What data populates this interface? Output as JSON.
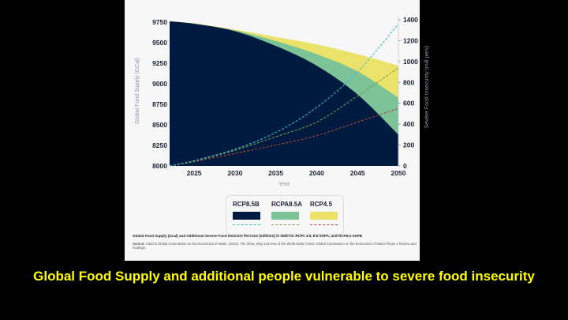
{
  "chart_data": {
    "type": "area",
    "title": "Global Food Supply (Gcal) and Additional Severe Food Insecure Persons (millions) in 2050 for RCPs 4.5, 8.5-SSPA, and RCP8.5-SSPB",
    "source_label": "Source:",
    "source": "Cited in Global Commission on the Economics of Water. (2023). The What, Why and How of the World Water Crisis: Global Commission on the Economics of Water Phase 1 Review and Findings.",
    "xlabel": "Year",
    "ylabel": "Global Food Supply (GCal)",
    "y2label": "Severe Food Insecurity (mill pers)",
    "xlim": [
      2022,
      2050
    ],
    "ylim": [
      8000,
      9800
    ],
    "y2lim": [
      0,
      1450
    ],
    "xticks": [
      2025,
      2030,
      2035,
      2040,
      2045,
      2050
    ],
    "yticks": [
      8000,
      8250,
      8500,
      8750,
      9000,
      9250,
      9500,
      9750
    ],
    "y2ticks": [
      0,
      200,
      400,
      600,
      800,
      1000,
      1200,
      1400
    ],
    "x": [
      2022,
      2025,
      2030,
      2035,
      2040,
      2045,
      2050
    ],
    "series": [
      {
        "name": "RCP4.5",
        "color": "#ebe26a",
        "line_color": "#a8463a",
        "supply": [
          9760,
          9735,
          9660,
          9570,
          9480,
          9360,
          9220
        ],
        "insecure": [
          0,
          40,
          120,
          200,
          290,
          420,
          550
        ]
      },
      {
        "name": "RCPA8.5A",
        "color": "#7cc497",
        "line_color": "#7a9a4a",
        "supply": [
          9760,
          9733,
          9650,
          9520,
          9360,
          9150,
          8830
        ],
        "insecure": [
          0,
          45,
          150,
          280,
          420,
          670,
          940
        ]
      },
      {
        "name": "RCP8.5B",
        "color": "#011a3f",
        "line_color": "#3fb6c9",
        "supply": [
          9760,
          9730,
          9640,
          9460,
          9220,
          8870,
          8380
        ],
        "insecure": [
          0,
          50,
          160,
          320,
          560,
          900,
          1360
        ]
      }
    ],
    "legend_order": [
      2,
      1,
      0
    ],
    "legend": "bottom"
  },
  "slide_title": "Global Food Supply and additional people vulnerable to severe food insecurity"
}
